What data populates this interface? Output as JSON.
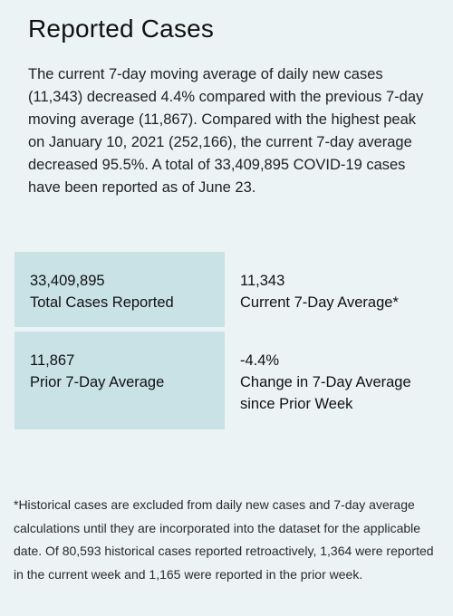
{
  "title": "Reported Cases",
  "summary": "The current 7-day moving average of daily new cases (11,343) decreased 4.4% compared with the previous 7-day moving average (11,867). Compared with the highest peak on January 10, 2021 (252,166), the current 7-day average decreased 95.5%. A total of 33,409,895 COVID-19 cases have been reported as of June 23.",
  "stats": [
    {
      "value": "33,409,895",
      "label": "Total Cases Reported"
    },
    {
      "value": "11,343",
      "label": "Current 7-Day Average*"
    },
    {
      "value": "11,867",
      "label": "Prior 7-Day Average"
    },
    {
      "value": "-4.4%",
      "label": "Change in 7-Day Average since Prior Week"
    }
  ],
  "footnote": "*Historical cases are excluded from daily new cases and 7-day average calculations until they are incorporated into the dataset for the applicable date. Of 80,593 historical cases reported retroactively, 1,364 were reported in the current week and 1,165 were reported in the prior week.",
  "colors": {
    "background": "#ebf3f4",
    "stat_box": "#c9e2e6"
  }
}
